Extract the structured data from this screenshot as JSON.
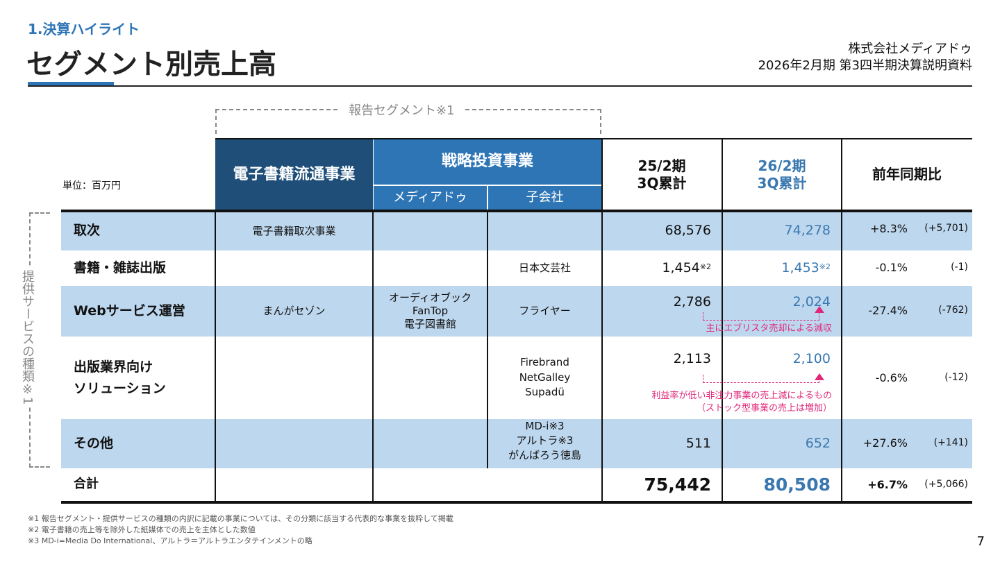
{
  "header": {
    "section": "1.決算ハイライト",
    "title": "セグメント別売上高",
    "company": "株式会社メディアドゥ",
    "doc": "2026年2月期 第3四半期決算説明資料"
  },
  "colors": {
    "navy": "#1f4e79",
    "blue": "#2e75b6",
    "light": "#bdd7ee",
    "accent_text": "#3a78b0",
    "annotation": "#e0287a"
  },
  "bracket_top": "報告セグメント※1",
  "bracket_left": "提供サービスの種類※1",
  "unit": "単位：百万円",
  "columns": {
    "seg1": "電子書籍流通事業",
    "seg2": "戦略投資事業",
    "seg2a": "メディアドゥ",
    "seg2b": "子会社",
    "prev": "25/2期\n3Q累計",
    "curr": "26/2期\n3Q累計",
    "yoy": "前年同期比"
  },
  "rows": [
    {
      "name": "取次",
      "seg1": "電子書籍取次事業",
      "seg2a": "",
      "seg2b": "",
      "prev": "68,576",
      "curr": "74,278",
      "pct": "+8.3%",
      "diff": "(+5,701)"
    },
    {
      "name": "書籍・雑誌出版",
      "seg1": "",
      "seg2a": "",
      "seg2b": "日本文芸社",
      "prev": "1,454",
      "prev_note": "※2",
      "curr": "1,453",
      "curr_note": "※2",
      "pct": "-0.1%",
      "diff": "(-1)"
    },
    {
      "name": "Webサービス運営",
      "seg1": "まんがセゾン",
      "seg2a": "オーディオブック\nFanTop\n電子図書館",
      "seg2b": "フライヤー",
      "prev": "2,786",
      "curr": "2,024",
      "pct": "-27.4%",
      "diff": "(-762)",
      "annotation": "主にエブリスタ売却による減収"
    },
    {
      "name": "出版業界向け\nソリューション",
      "seg1": "",
      "seg2a": "",
      "seg2b": "Firebrand\nNetGalley\nSupadü",
      "prev": "2,113",
      "curr": "2,100",
      "pct": "-0.6%",
      "diff": "(-12)",
      "annotation": "利益率が低い非注力事業の売上減によるもの\n（ストック型事業の売上は増加）"
    },
    {
      "name": "その他",
      "seg1": "",
      "seg2a": "",
      "seg2b_lines": [
        "MD-i※3",
        "アルトラ※3",
        "がんばろう徳島"
      ],
      "prev": "511",
      "curr": "652",
      "pct": "+27.6%",
      "diff": "(+141)"
    },
    {
      "name": "合計",
      "prev": "75,442",
      "curr": "80,508",
      "pct": "+6.7%",
      "diff": "(+5,066)"
    }
  ],
  "footnotes": [
    "※1 報告セグメント・提供サービスの種類の内訳に記載の事業については、その分類に該当する代表的な事業を抜粋して掲載",
    "※2 電子書籍の売上等を除外した紙媒体での売上を主体とした数値",
    "※3 MD-i=Media Do International、アルトラ＝アルトラエンタテインメントの略"
  ],
  "page": "7"
}
